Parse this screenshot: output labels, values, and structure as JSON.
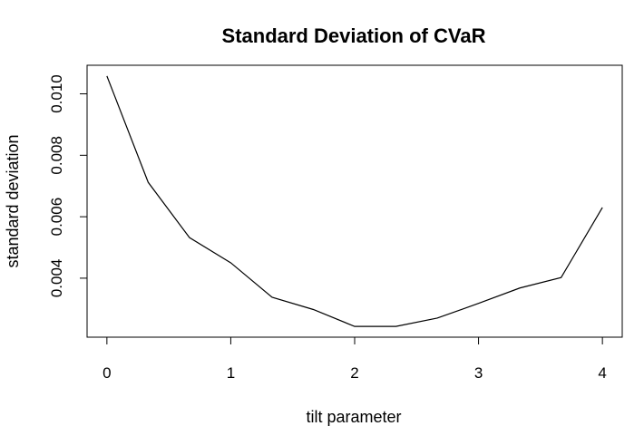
{
  "chart_data": {
    "type": "line",
    "title": "Standard Deviation of CVaR",
    "xlabel": "tilt parameter",
    "ylabel": "standard deviation",
    "x": [
      0,
      0.3333,
      0.6667,
      1,
      1.3333,
      1.6667,
      2,
      2.3333,
      2.6667,
      3,
      3.3333,
      3.6667,
      4
    ],
    "series": [
      {
        "values": [
          0.01058,
          0.00712,
          0.00532,
          0.0045,
          0.00338,
          0.00298,
          0.00243,
          0.00243,
          0.0027,
          0.00318,
          0.00368,
          0.00402,
          0.0063
        ]
      }
    ],
    "xlim": [
      -0.16,
      4.16
    ],
    "ylim": [
      0.00208,
      0.01093
    ],
    "x_ticks": [
      0,
      1,
      2,
      3,
      4
    ],
    "x_tick_labels": [
      "0",
      "1",
      "2",
      "3",
      "4"
    ],
    "y_ticks": [
      0.004,
      0.006,
      0.008,
      0.01
    ],
    "y_tick_labels": [
      "0.004",
      "0.006",
      "0.008",
      "0.010"
    ],
    "grid": false,
    "line_color": "#000000"
  }
}
